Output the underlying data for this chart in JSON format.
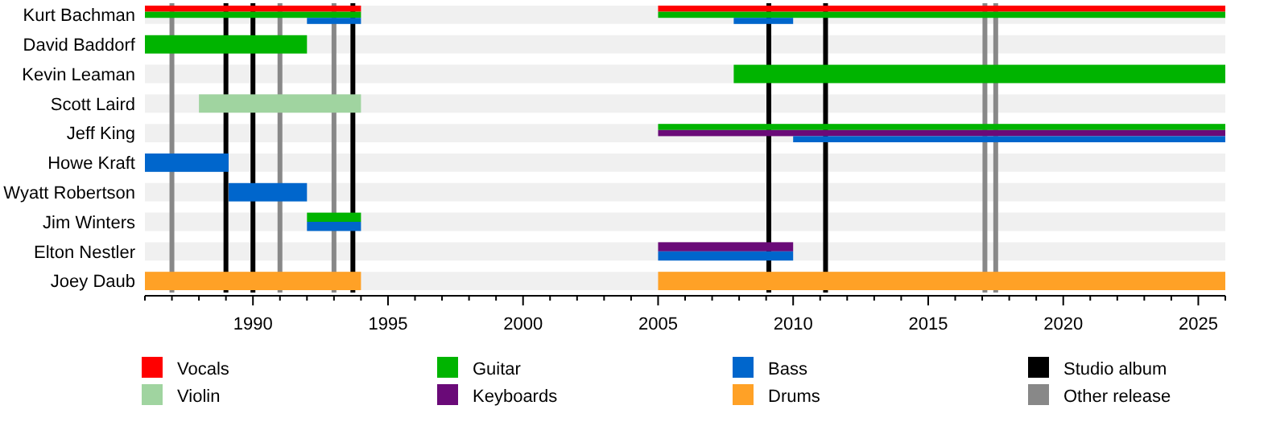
{
  "chart_data": {
    "type": "bar",
    "orientation": "horizontal",
    "categories": [
      "Kurt Bachman",
      "David Baddorf",
      "Kevin Leaman",
      "Scott Laird",
      "Jeff King",
      "Howe Kraft",
      "Wyatt Robertson",
      "Jim Winters",
      "Elton Nestler",
      "Joey Daub"
    ],
    "series": [
      {
        "name": "Vocals",
        "color": "#ff0000",
        "base": [
          1986,
          null,
          null,
          null,
          null,
          null,
          null,
          null,
          null,
          null
        ],
        "values": [
          8,
          null,
          null,
          null,
          null,
          null,
          null,
          null,
          null,
          null
        ]
      },
      {
        "name": "Violin",
        "color": "#a0d4a0",
        "base": [
          null,
          null,
          null,
          1988,
          null,
          null,
          null,
          null,
          null,
          null
        ],
        "values": [
          null,
          null,
          null,
          6,
          null,
          null,
          null,
          null,
          null,
          null
        ]
      },
      {
        "name": "Guitar",
        "color": "#00b400",
        "base": [
          1986,
          1986,
          2007.8,
          null,
          2005,
          null,
          null,
          1992,
          null,
          null
        ],
        "values": [
          8,
          6,
          18.2,
          null,
          21,
          null,
          null,
          2,
          null,
          null
        ]
      },
      {
        "name": "Keyboards",
        "color": "#6a0a78",
        "base": [
          null,
          null,
          null,
          null,
          2005,
          null,
          null,
          null,
          2005,
          null
        ],
        "values": [
          null,
          null,
          null,
          null,
          21,
          null,
          null,
          null,
          5,
          null
        ]
      },
      {
        "name": "Bass",
        "color": "#0066cc",
        "base": [
          1992,
          null,
          null,
          null,
          2010,
          1986,
          1989.1,
          1992,
          2005,
          null
        ],
        "values": [
          2,
          null,
          null,
          null,
          16,
          3.1,
          2.9,
          2,
          5,
          null
        ]
      },
      {
        "name": "Drums",
        "color": "#ffa126",
        "base": [
          null,
          null,
          null,
          null,
          null,
          null,
          null,
          null,
          null,
          1986
        ],
        "values": [
          null,
          null,
          null,
          null,
          null,
          null,
          null,
          null,
          null,
          8
        ]
      },
      {
        "color": "#ff0000",
        "base": [
          2005,
          null,
          null,
          null,
          null,
          null,
          null,
          null,
          null,
          null
        ],
        "values": [
          21,
          null,
          null,
          null,
          null,
          null,
          null,
          null,
          null,
          null
        ]
      },
      {
        "color": "#00b400",
        "base": [
          2005,
          null,
          null,
          null,
          null,
          null,
          null,
          null,
          null,
          null
        ],
        "values": [
          21,
          null,
          null,
          null,
          null,
          null,
          null,
          null,
          null,
          null
        ]
      },
      {
        "color": "#0066cc",
        "base": [
          2007.8,
          null,
          null,
          null,
          null,
          null,
          null,
          null,
          null,
          null
        ],
        "values": [
          2.2,
          null,
          null,
          null,
          null,
          null,
          null,
          null,
          null,
          null
        ]
      },
      {
        "color": "#ffa126",
        "base": [
          null,
          null,
          null,
          null,
          null,
          null,
          null,
          null,
          null,
          2005
        ],
        "values": [
          null,
          null,
          null,
          null,
          null,
          null,
          null,
          null,
          null,
          21
        ]
      }
    ],
    "xlim": [
      1986,
      2026
    ],
    "xticks": [
      {
        "value": 1986,
        "label": null
      },
      {
        "value": 1987,
        "label": null
      },
      {
        "value": 1988,
        "label": null
      },
      {
        "value": 1989,
        "label": null
      },
      1990,
      {
        "value": 1991,
        "label": null
      },
      {
        "value": 1992,
        "label": null
      },
      {
        "value": 1993,
        "label": null
      },
      {
        "value": 1994,
        "label": null
      },
      1995,
      {
        "value": 1996,
        "label": null
      },
      {
        "value": 1997,
        "label": null
      },
      {
        "value": 1998,
        "label": null
      },
      {
        "value": 1999,
        "label": null
      },
      2000,
      {
        "value": 2001,
        "label": null
      },
      {
        "value": 2002,
        "label": null
      },
      {
        "value": 2003,
        "label": null
      },
      {
        "value": 2004,
        "label": null
      },
      2005,
      {
        "value": 2006,
        "label": null
      },
      {
        "value": 2007,
        "label": null
      },
      {
        "value": 2008,
        "label": null
      },
      {
        "value": 2009,
        "label": null
      },
      2010,
      {
        "value": 2011,
        "label": null
      },
      {
        "value": 2012,
        "label": null
      },
      {
        "value": 2013,
        "label": null
      },
      {
        "value": 2014,
        "label": null
      },
      2015,
      {
        "value": 2016,
        "label": null
      },
      {
        "value": 2017,
        "label": null
      },
      {
        "value": 2018,
        "label": null
      },
      {
        "value": 2019,
        "label": null
      },
      2020,
      {
        "value": 2021,
        "label": null
      },
      {
        "value": 2022,
        "label": null
      },
      {
        "value": 2023,
        "label": null
      },
      {
        "value": 2024,
        "label": null
      },
      2025,
      {
        "value": 2026,
        "label": null
      }
    ],
    "ref_lines": [
      {
        "axis": "x",
        "value": 1989,
        "label": "Studio album",
        "color": "#000000"
      },
      {
        "axis": "x",
        "value": 1990,
        "color": "#000000"
      },
      {
        "axis": "x",
        "value": 1993.7,
        "color": "#000000"
      },
      {
        "axis": "x",
        "value": 2009.1,
        "color": "#000000"
      },
      {
        "axis": "x",
        "value": 2011.2,
        "color": "#000000"
      },
      {
        "axis": "x",
        "value": 1987,
        "label": "Other release",
        "color": "#888888"
      },
      {
        "axis": "x",
        "value": 1991,
        "color": "#888888"
      },
      {
        "axis": "x",
        "value": 1993,
        "color": "#888888"
      },
      {
        "axis": "x",
        "value": 2017.1,
        "color": "#888888"
      },
      {
        "axis": "x",
        "value": 2017.5,
        "color": "#888888"
      }
    ],
    "grid": "y",
    "legend": "bottom"
  }
}
